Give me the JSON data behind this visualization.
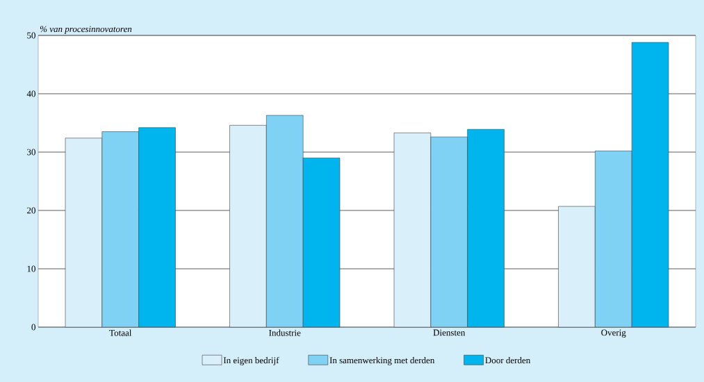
{
  "chart_data": {
    "type": "bar",
    "ylabel": "% van procesinnovatoren",
    "categories": [
      "Totaal",
      "Industrie",
      "Diensten",
      "Overig"
    ],
    "series": [
      {
        "name": "In eigen bedrijf",
        "color": "#d9f0fb",
        "values": [
          32.4,
          34.6,
          33.3,
          20.7
        ]
      },
      {
        "name": "In samenwerking met derden",
        "color": "#80d2f5",
        "values": [
          33.5,
          36.3,
          32.6,
          30.2
        ]
      },
      {
        "name": "Door derden",
        "color": "#00b5ee",
        "values": [
          34.2,
          29.0,
          33.9,
          48.8
        ]
      }
    ],
    "ylim": [
      0,
      50
    ],
    "yticks": [
      0,
      10,
      20,
      30,
      40,
      50
    ],
    "grid": "y",
    "legend": "bottom"
  }
}
